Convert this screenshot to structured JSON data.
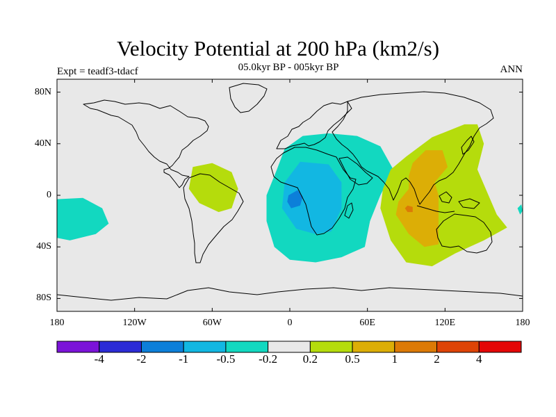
{
  "title": "Velocity Potential at 200 hPa (km2/s)",
  "subtitle": "05.0kyr BP - 005kyr BP",
  "left_label": "Expt = teadf3-tdacf",
  "right_label": "ANN",
  "lat_ticks": [
    {
      "lat": 80,
      "label": "80N"
    },
    {
      "lat": 40,
      "label": "40N"
    },
    {
      "lat": 0,
      "label": "0"
    },
    {
      "lat": -40,
      "label": "40S"
    },
    {
      "lat": -80,
      "label": "80S"
    }
  ],
  "lon_ticks": [
    {
      "lon": -180,
      "label": "180"
    },
    {
      "lon": -120,
      "label": "120W"
    },
    {
      "lon": -60,
      "label": "60W"
    },
    {
      "lon": 0,
      "label": "0"
    },
    {
      "lon": 60,
      "label": "60E"
    },
    {
      "lon": 120,
      "label": "120E"
    },
    {
      "lon": 180,
      "label": "180"
    }
  ],
  "colorbar": {
    "colors": [
      "#7b13d8",
      "#2b2bd6",
      "#0c7fd9",
      "#12b7e2",
      "#12d8c0",
      "#e8e8e8",
      "#b5dc0c",
      "#dcae06",
      "#dc7a06",
      "#de4406",
      "#e40606"
    ],
    "labels": [
      "-4",
      "-2",
      "-1",
      "-0.5",
      "-0.2",
      "0.2",
      "0.5",
      "1",
      "2",
      "4"
    ]
  },
  "chart_data": {
    "type": "heatmap",
    "projection": "cylindrical equidistant",
    "lon_range": [
      -180,
      180
    ],
    "lat_range": [
      -90,
      90
    ],
    "background_color": "#e8e8e8",
    "contour_levels": [
      -4,
      -2,
      -1,
      -0.5,
      -0.2,
      0.2,
      0.5,
      1,
      2,
      4
    ],
    "regions": [
      {
        "level": "-0.2 to -0.5",
        "color": "#12d8c0",
        "points": [
          [
            10,
            46
          ],
          [
            30,
            48
          ],
          [
            52,
            46
          ],
          [
            70,
            38
          ],
          [
            80,
            20
          ],
          [
            70,
            0
          ],
          [
            62,
            -20
          ],
          [
            58,
            -40
          ],
          [
            40,
            -48
          ],
          [
            20,
            -52
          ],
          [
            0,
            -50
          ],
          [
            -12,
            -40
          ],
          [
            -18,
            -20
          ],
          [
            -18,
            0
          ],
          [
            -10,
            20
          ],
          [
            -4,
            36
          ]
        ]
      },
      {
        "level": "-0.5 to -1",
        "color": "#12b7e2",
        "points": [
          [
            8,
            26
          ],
          [
            30,
            24
          ],
          [
            40,
            10
          ],
          [
            40,
            -10
          ],
          [
            32,
            -28
          ],
          [
            20,
            -30
          ],
          [
            5,
            -26
          ],
          [
            -6,
            -10
          ],
          [
            -4,
            10
          ]
        ]
      },
      {
        "level": "-1 to -2",
        "color": "#0c7fd9",
        "points": [
          [
            -1,
            0
          ],
          [
            6,
            4
          ],
          [
            10,
            -1
          ],
          [
            8,
            -8
          ],
          [
            1,
            -10
          ],
          [
            -2,
            -5
          ]
        ]
      },
      {
        "level": "-0.2 to -0.5",
        "color": "#12d8c0",
        "points": [
          [
            -180,
            -3
          ],
          [
            -160,
            -2
          ],
          [
            -145,
            -10
          ],
          [
            -140,
            -22
          ],
          [
            -150,
            -30
          ],
          [
            -170,
            -35
          ],
          [
            -180,
            -33
          ]
        ]
      },
      {
        "level": "-0.2 to -0.5",
        "color": "#12d8c0",
        "points": [
          [
            179,
            -7
          ],
          [
            176,
            -10
          ],
          [
            178,
            -15
          ],
          [
            180,
            -12
          ]
        ]
      },
      {
        "level": "0.2 to 0.5",
        "color": "#b5dc0c",
        "points": [
          [
            -75,
            22
          ],
          [
            -60,
            25
          ],
          [
            -45,
            18
          ],
          [
            -40,
            5
          ],
          [
            -45,
            -10
          ],
          [
            -55,
            -13
          ],
          [
            -70,
            -6
          ],
          [
            -78,
            5
          ]
        ]
      },
      {
        "level": "0.2 to 0.5",
        "color": "#b5dc0c",
        "points": [
          [
            90,
            30
          ],
          [
            110,
            45
          ],
          [
            135,
            55
          ],
          [
            145,
            55
          ],
          [
            150,
            40
          ],
          [
            145,
            20
          ],
          [
            160,
            -15
          ],
          [
            168,
            -25
          ],
          [
            150,
            -35
          ],
          [
            128,
            -45
          ],
          [
            110,
            -55
          ],
          [
            90,
            -52
          ],
          [
            78,
            -35
          ],
          [
            70,
            -10
          ],
          [
            72,
            5
          ],
          [
            78,
            20
          ]
        ]
      },
      {
        "level": "0.5 to 1",
        "color": "#dcae06",
        "points": [
          [
            95,
            25
          ],
          [
            105,
            35
          ],
          [
            118,
            35
          ],
          [
            122,
            22
          ],
          [
            112,
            10
          ],
          [
            115,
            0
          ],
          [
            115,
            -20
          ],
          [
            115,
            -38
          ],
          [
            104,
            -40
          ],
          [
            92,
            -30
          ],
          [
            82,
            -15
          ],
          [
            84,
            -5
          ],
          [
            92,
            5
          ],
          [
            92,
            15
          ]
        ]
      },
      {
        "level": "1 to 2",
        "color": "#dc7a06",
        "points": [
          [
            91,
            -8
          ],
          [
            95,
            -9
          ],
          [
            95,
            -13
          ],
          [
            91,
            -13
          ],
          [
            89,
            -10
          ]
        ]
      }
    ]
  }
}
